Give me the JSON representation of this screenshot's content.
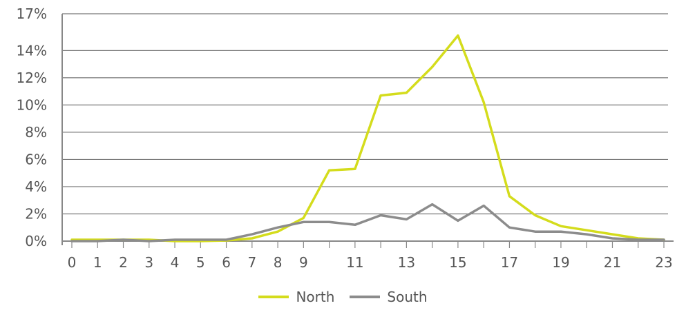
{
  "chart_data": {
    "type": "line",
    "x": [
      0,
      1,
      2,
      3,
      4,
      5,
      6,
      7,
      8,
      9,
      10,
      11,
      12,
      13,
      14,
      15,
      16,
      17,
      18,
      19,
      20,
      21,
      22,
      23
    ],
    "x_tick_labels": [
      "0",
      "1",
      "2",
      "3",
      "4",
      "5",
      "6",
      "7",
      "8",
      "9",
      "11",
      "13",
      "15",
      "17",
      "19",
      "21",
      "23"
    ],
    "x_tick_values": [
      0,
      1,
      2,
      3,
      4,
      5,
      6,
      7,
      8,
      9,
      11,
      13,
      15,
      17,
      19,
      21,
      23
    ],
    "y_tick_values": [
      0,
      2,
      4,
      6,
      8,
      10,
      12,
      14,
      17
    ],
    "y_tick_labels": [
      "0%",
      "2%",
      "4%",
      "6%",
      "8%",
      "10%",
      "12%",
      "14%",
      "17%"
    ],
    "ylim": [
      0,
      16.7
    ],
    "xlim": [
      0,
      23
    ],
    "grid": "horizontal",
    "legend_position": "bottom-center",
    "series": [
      {
        "name": "North",
        "color": "#d4dc1c",
        "values": [
          0.1,
          0.1,
          0.1,
          0.1,
          0.0,
          0.0,
          0.05,
          0.2,
          0.7,
          1.7,
          5.2,
          5.3,
          10.7,
          10.9,
          12.8,
          15.1,
          10.2,
          3.3,
          1.9,
          1.1,
          0.8,
          0.5,
          0.2,
          0.1
        ]
      },
      {
        "name": "South",
        "color": "#8c8c8c",
        "values": [
          0.0,
          0.0,
          0.1,
          0.0,
          0.1,
          0.1,
          0.1,
          0.5,
          1.0,
          1.4,
          1.4,
          1.2,
          1.9,
          1.6,
          2.7,
          1.5,
          2.6,
          1.0,
          0.7,
          0.7,
          0.5,
          0.2,
          0.1,
          0.1
        ]
      }
    ]
  }
}
